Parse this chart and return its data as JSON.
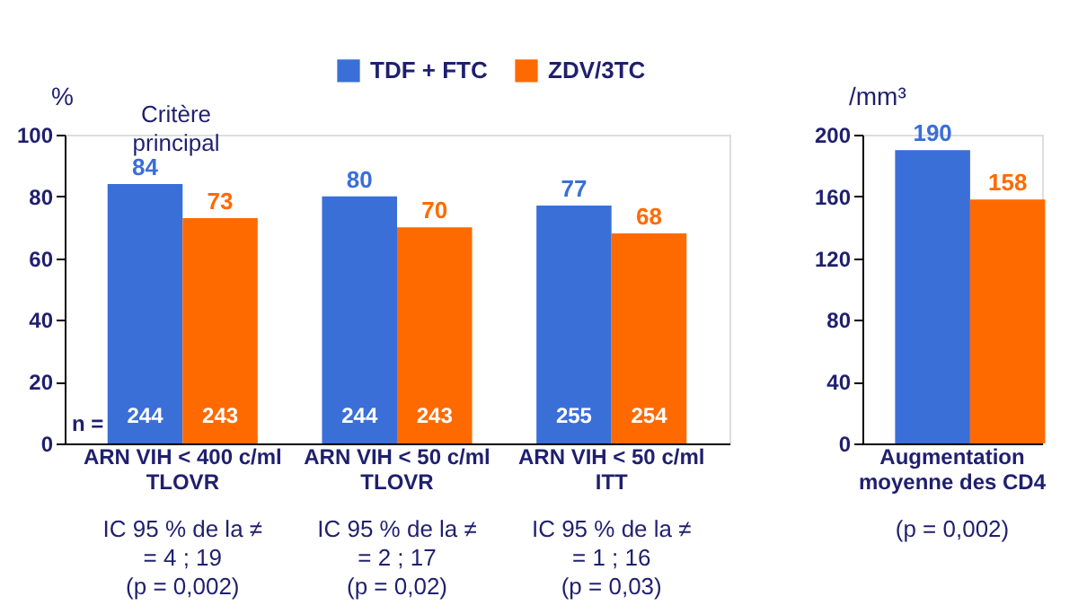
{
  "chart_data": [
    {
      "type": "bar",
      "ylabel": "%",
      "categories": [
        "ARN VIH < 400 c/ml\nTLOVR",
        "ARN VIH < 50 c/ml\nTLOVR",
        "ARN VIH < 50 c/ml\nITT"
      ],
      "series": [
        {
          "name": "TDF + FTC",
          "color": "#3a6fd8",
          "values": [
            84,
            80,
            77
          ]
        },
        {
          "name": "ZDV/3TC",
          "color": "#ff6a00",
          "values": [
            73,
            70,
            68
          ]
        }
      ],
      "ylim": [
        0,
        100
      ],
      "yticks": [
        0,
        20,
        40,
        60,
        80,
        100
      ],
      "data_labels": true,
      "legend": "top",
      "grid": false,
      "annotations": [
        "Critère\nprincipal",
        "IC 95 % de la ≠\n= 4 ; 19\n(p = 0,002)",
        "IC 95 % de la ≠\n= 2 ; 17\n(p = 0,02)",
        "IC 95 % de la ≠\n= 1 ; 16\n(p = 0,03)",
        "n =",
        {
          "text": "244",
          "x": "ARN VIH < 400 c/ml\nTLOVR",
          "y": 5
        },
        {
          "text": "243",
          "x": "ARN VIH < 400 c/ml\nTLOVR",
          "y": 5
        },
        {
          "text": "244",
          "x": "ARN VIH < 50 c/ml\nTLOVR",
          "y": 5
        },
        {
          "text": "243",
          "x": "ARN VIH < 50 c/ml\nTLOVR",
          "y": 5
        },
        {
          "text": "255",
          "x": "ARN VIH < 50 c/ml\nITT",
          "y": 5
        },
        {
          "text": "254",
          "x": "ARN VIH < 50 c/ml\nITT",
          "y": 5
        }
      ]
    },
    {
      "type": "bar",
      "ylabel": "/mm³",
      "categories": [
        "Augmentation\nmoyenne des CD4"
      ],
      "series": [
        {
          "color": "#3a6fd8",
          "values": [
            190
          ]
        },
        {
          "color": "#ff6a00",
          "values": [
            158
          ]
        }
      ],
      "ylim": [
        0,
        200
      ],
      "yticks": [
        0,
        40,
        80,
        120,
        160,
        200
      ],
      "data_labels": true,
      "grid": false,
      "annotations": [
        "(p = 0,002)"
      ]
    }
  ]
}
